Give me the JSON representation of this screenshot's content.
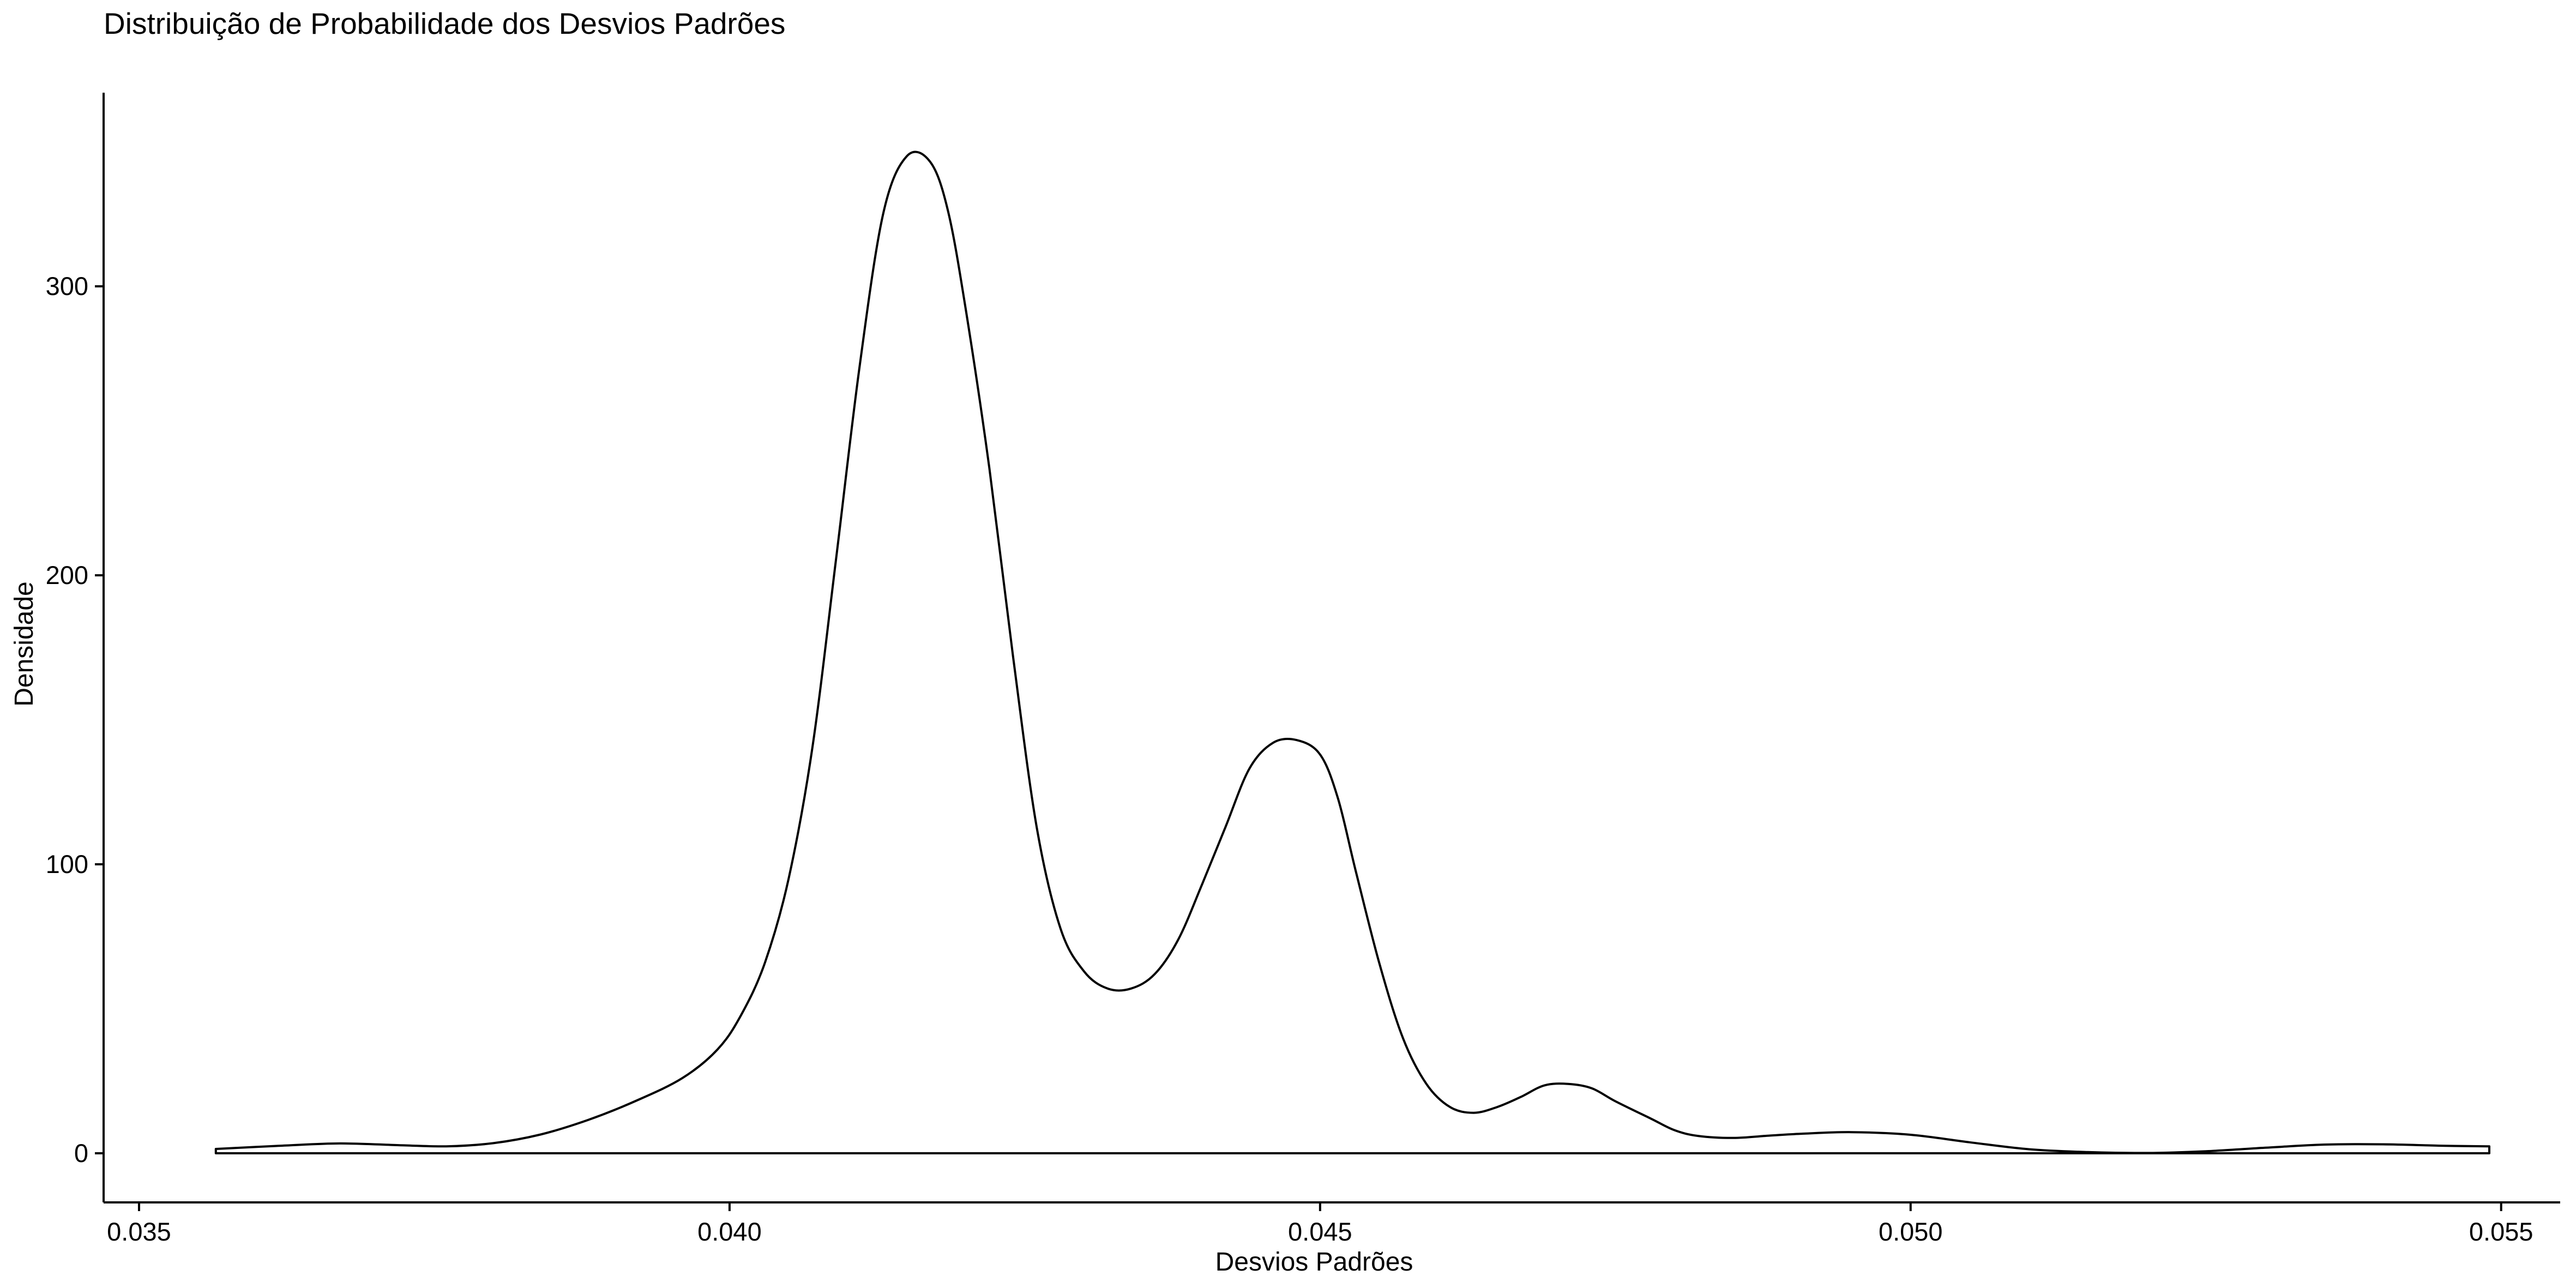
{
  "chart_data": {
    "type": "area",
    "title": "Distribuição de Probabilidade dos Desvios Padrões",
    "xlabel": "Desvios Padrões",
    "ylabel": "Densidade",
    "xlim": [
      0.0347,
      0.0555
    ],
    "ylim": [
      -17,
      367
    ],
    "x_ticks": [
      0.035,
      0.04,
      0.045,
      0.05,
      0.055
    ],
    "x_tick_labels": [
      "0.035",
      "0.040",
      "0.045",
      "0.050",
      "0.055"
    ],
    "y_ticks": [
      0,
      100,
      200,
      300
    ],
    "y_tick_labels": [
      "0",
      "100",
      "200",
      "300"
    ],
    "grid": false,
    "legend": "none",
    "colors": {
      "line": "#000000",
      "fill": "#ffffff",
      "background": "#ffffff"
    },
    "series": [
      {
        "x": [
          0.03565,
          0.0362,
          0.0367,
          0.0372,
          0.0376,
          0.038,
          0.0384,
          0.0388,
          0.0392,
          0.0396,
          0.0399,
          0.0401,
          0.0403,
          0.0405,
          0.0407,
          0.0409,
          0.0411,
          0.0413,
          0.0415,
          0.0417,
          0.04185,
          0.042,
          0.0422,
          0.0424,
          0.0426,
          0.0428,
          0.043,
          0.0432,
          0.0434,
          0.0436,
          0.0438,
          0.044,
          0.0442,
          0.0444,
          0.0446,
          0.0448,
          0.045,
          0.04515,
          0.0453,
          0.0455,
          0.0457,
          0.0459,
          0.0461,
          0.0463,
          0.0465,
          0.0467,
          0.0469,
          0.0471,
          0.0473,
          0.0475,
          0.0478,
          0.048,
          0.0482,
          0.0485,
          0.0488,
          0.0491,
          0.0495,
          0.05,
          0.0505,
          0.051,
          0.0515,
          0.052,
          0.0525,
          0.053,
          0.0535,
          0.054,
          0.0545,
          0.0549
        ],
        "y": [
          1.5,
          2.6,
          3.4,
          2.8,
          2.4,
          3.5,
          6.5,
          11.5,
          18,
          26,
          36,
          48,
          66,
          95,
          140,
          205,
          272,
          325,
          345,
          343,
          326,
          292,
          237,
          172,
          113,
          78,
          63,
          57,
          57,
          62,
          74,
          93,
          113,
          133,
          142,
          143,
          138,
          123,
          98,
          66,
          40,
          24,
          16,
          14,
          16,
          19.5,
          23.5,
          24,
          22.5,
          18,
          12,
          8,
          6,
          5.3,
          6.1,
          6.8,
          7.3,
          6.4,
          3.8,
          1.4,
          0.4,
          0.1,
          0.7,
          1.9,
          3,
          3.1,
          2.6,
          2.4
        ]
      }
    ]
  }
}
